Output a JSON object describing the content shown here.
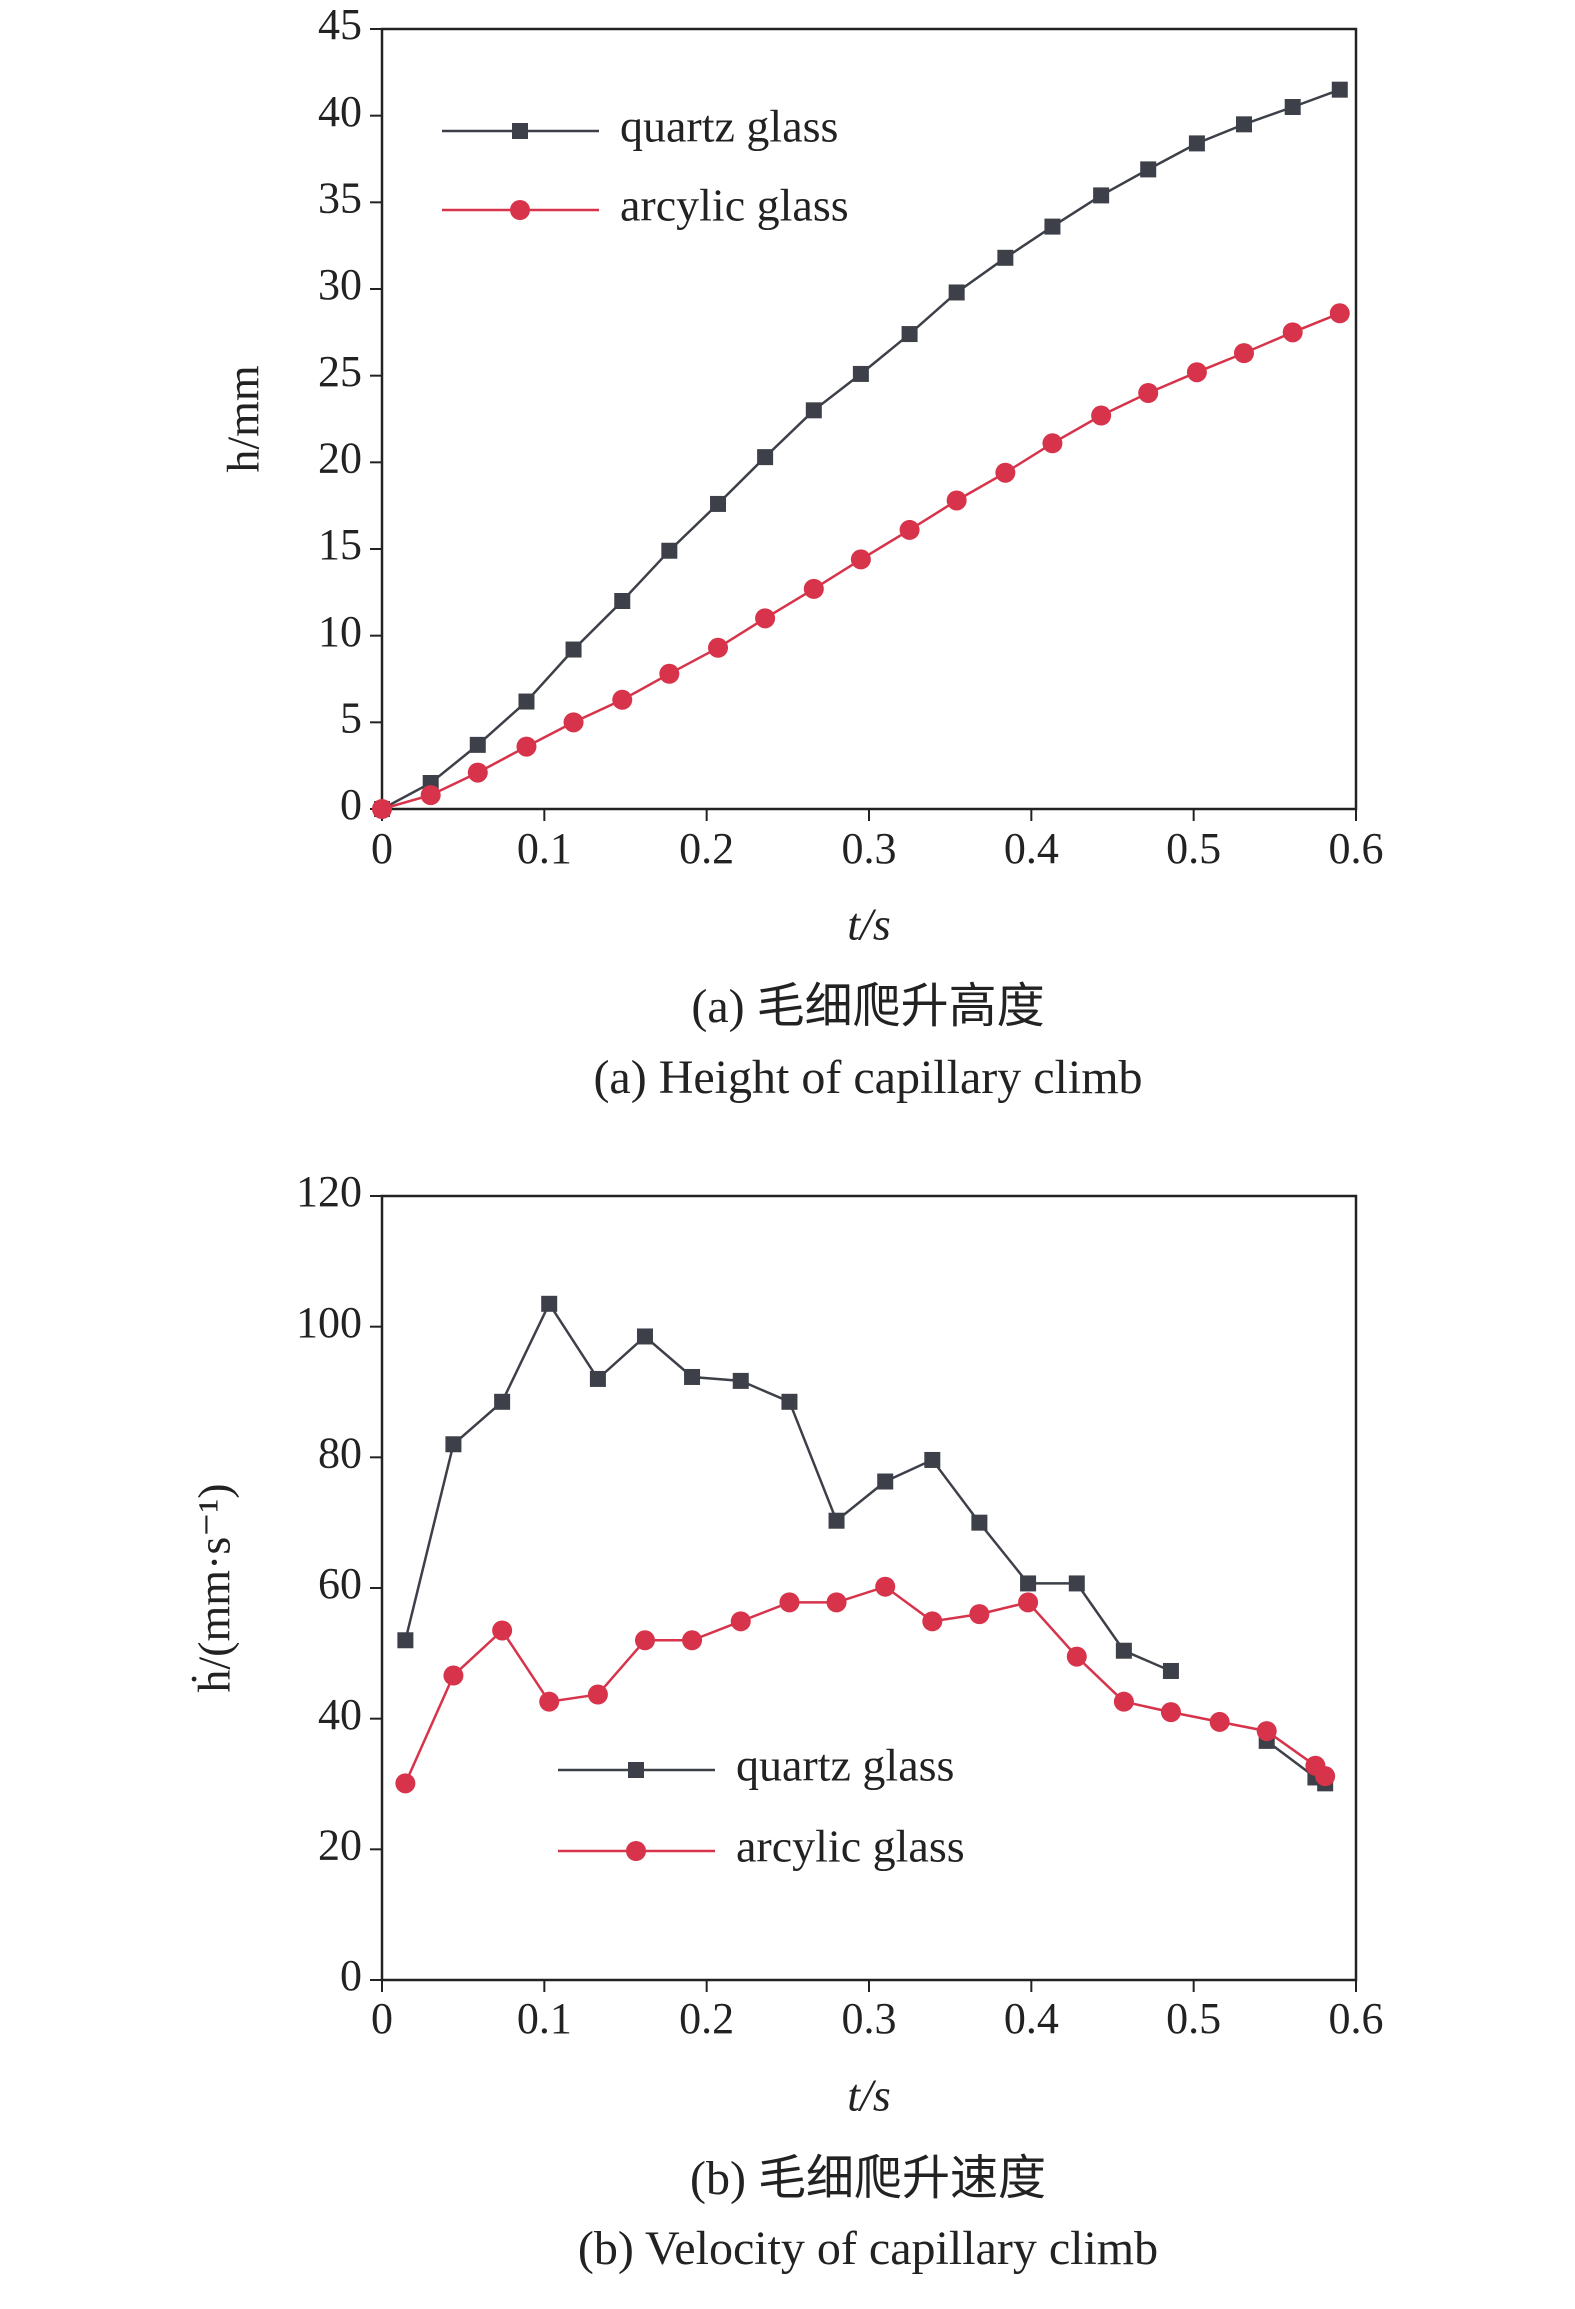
{
  "chart_data": [
    {
      "type": "line",
      "ylabel": "h/mm",
      "xlabel": "t/s",
      "caption": [
        "(a) 毛细爬升高度",
        "(a) Height of capillary climb"
      ],
      "x": [
        0,
        0.03,
        0.059,
        0.089,
        0.118,
        0.148,
        0.177,
        0.207,
        0.236,
        0.266,
        0.295,
        0.325,
        0.354,
        0.384,
        0.413,
        0.443,
        0.472,
        0.502,
        0.531,
        0.561,
        0.59
      ],
      "series": [
        {
          "name": "quartz glass",
          "color": "#3d4048",
          "marker": "square",
          "values": [
            0,
            1.5,
            3.7,
            6.2,
            9.2,
            12,
            14.9,
            17.6,
            20.3,
            23,
            25.1,
            27.4,
            29.8,
            31.8,
            33.6,
            35.4,
            36.9,
            38.4,
            39.5,
            40.5,
            41.5
          ]
        },
        {
          "name": "arcylic glass",
          "color": "#d7334a",
          "marker": "circle",
          "values": [
            0,
            0.8,
            2.1,
            3.6,
            5.0,
            6.3,
            7.8,
            9.3,
            11.0,
            12.7,
            14.4,
            16.1,
            17.8,
            19.4,
            21.1,
            22.7,
            24.0,
            25.2,
            26.3,
            27.5,
            28.6
          ]
        }
      ],
      "xlim": [
        0,
        0.6
      ],
      "xticks": [
        0,
        0.1,
        0.2,
        0.3,
        0.4,
        0.5,
        0.6
      ],
      "ylim": [
        0,
        45
      ],
      "yticks": [
        0,
        5,
        10,
        15,
        20,
        25,
        30,
        35,
        40,
        45
      ],
      "legend": "upper left"
    },
    {
      "type": "line",
      "ylabel": "ḣ/(mm·s⁻¹)",
      "xlabel": "t/s",
      "caption": [
        "(b) 毛细爬升速度",
        "(b) Velocity of capillary climb"
      ],
      "x": [
        0.0144,
        0.044,
        0.074,
        0.103,
        0.133,
        0.162,
        0.191,
        0.221,
        0.251,
        0.28,
        0.31,
        0.339,
        0.368,
        0.398,
        0.428,
        0.457,
        0.486,
        0.516,
        0.545,
        0.575,
        0.581
      ],
      "series": [
        {
          "name": "quartz glass",
          "color": "#3d4048",
          "marker": "square",
          "values": [
            52,
            82,
            88.5,
            103.5,
            92,
            98.5,
            92.3,
            91.7,
            88.5,
            70.3,
            76.3,
            79.6,
            70,
            60.7,
            60.7,
            50.4,
            47.3,
            null,
            36.6,
            31,
            30.1
          ]
        },
        {
          "name": "arcylic glass",
          "color": "#d7334a",
          "marker": "circle",
          "values": [
            30.1,
            46.6,
            53.5,
            42.6,
            43.7,
            52,
            52,
            54.9,
            57.8,
            57.8,
            60.2,
            54.9,
            56,
            57.8,
            49.5,
            42.6,
            41,
            39.5,
            38.1,
            32.8,
            31.2
          ]
        }
      ],
      "xlim": [
        0,
        0.6
      ],
      "xticks": [
        0,
        0.1,
        0.2,
        0.3,
        0.4,
        0.5,
        0.6
      ],
      "ylim": [
        0,
        120
      ],
      "yticks": [
        0,
        20,
        40,
        60,
        80,
        100,
        120
      ],
      "legend": "lower left"
    }
  ]
}
